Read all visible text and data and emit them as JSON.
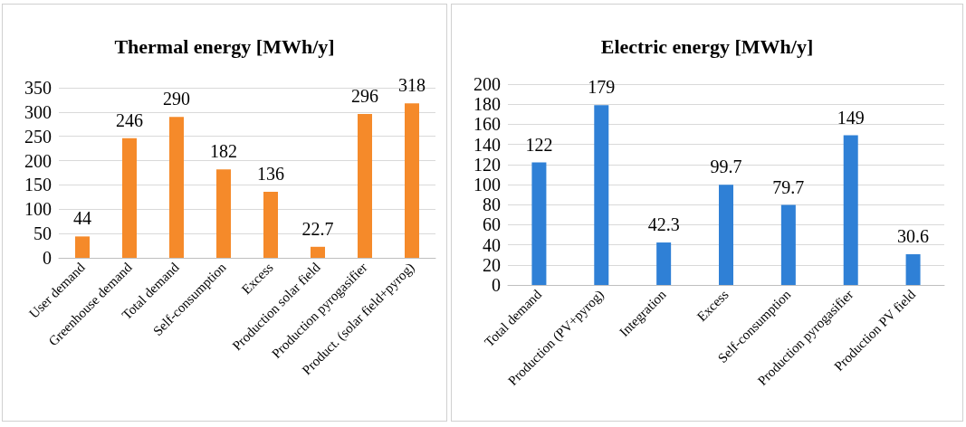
{
  "chart_data": [
    {
      "type": "bar",
      "title": "Thermal energy [MWh/y]",
      "categories": [
        "User demand",
        "Greenhouse demand",
        "Total demand",
        "Self-consumption",
        "Excess",
        "Production solar field",
        "Production pyrogasifier",
        "Product. (solar field+pyrog)"
      ],
      "values": [
        44,
        246,
        290,
        182,
        136,
        22.7,
        296,
        318
      ],
      "color": "#f58a2a",
      "ylim": [
        0,
        350
      ],
      "yticks": [
        0,
        50,
        100,
        150,
        200,
        250,
        300,
        350
      ],
      "grid": "y",
      "data_labels": true
    },
    {
      "type": "bar",
      "title": "Electric energy [MWh/y]",
      "categories": [
        "Total demand",
        "Production (PV+pyrog)",
        "Integration",
        "Excess",
        "Self-consumption",
        "Production pyrogasifier",
        "Production PV field"
      ],
      "values": [
        122,
        179,
        42.3,
        99.7,
        79.7,
        149,
        30.6
      ],
      "color": "#2f80d6",
      "ylim": [
        0,
        200
      ],
      "yticks": [
        0,
        20,
        40,
        60,
        80,
        100,
        120,
        140,
        160,
        180,
        200
      ],
      "grid": "y",
      "data_labels": true
    }
  ]
}
